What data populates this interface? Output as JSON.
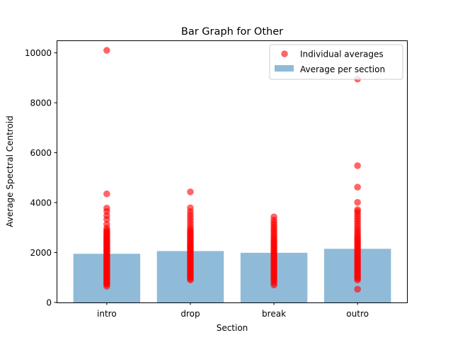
{
  "chart_data": {
    "type": "bar",
    "title": "Bar Graph for Other",
    "xlabel": "Section",
    "ylabel": "Average Spectral Centroid",
    "categories": [
      "intro",
      "drop",
      "break",
      "outro"
    ],
    "ylim": [
      0,
      10500
    ],
    "yticks": [
      0,
      2000,
      4000,
      6000,
      8000,
      10000
    ],
    "ytick_labels": [
      "0",
      "2000",
      "4000",
      "6000",
      "8000",
      "10000"
    ],
    "grid": false,
    "legend_position": "top-right",
    "series": [
      {
        "name": "Average per section",
        "kind": "bar",
        "color": "#1f77b4",
        "opacity": 0.5,
        "values": [
          1950,
          2060,
          1990,
          2150
        ]
      },
      {
        "name": "Individual averages",
        "kind": "scatter",
        "color": "#ff0000",
        "opacity": 0.6,
        "points": {
          "intro": [
            10100,
            4350,
            3780,
            3650,
            3480,
            3330,
            3130,
            2980,
            2900,
            2850,
            2800,
            2760,
            2700,
            2650,
            2600,
            2560,
            2520,
            2480,
            2440,
            2400,
            2360,
            2320,
            2280,
            2240,
            2200,
            2160,
            2120,
            2080,
            2040,
            2000,
            1960,
            1920,
            1880,
            1840,
            1800,
            1760,
            1720,
            1680,
            1640,
            1600,
            1560,
            1520,
            1480,
            1440,
            1400,
            1360,
            1320,
            1280,
            1240,
            1200,
            1160,
            1120,
            1080,
            1040,
            1000,
            960,
            920,
            880,
            840,
            800,
            760,
            720,
            650
          ],
          "drop": [
            4430,
            3790,
            3640,
            3520,
            3400,
            3280,
            3160,
            3040,
            2950,
            2880,
            2820,
            2760,
            2700,
            2640,
            2580,
            2520,
            2460,
            2400,
            2350,
            2300,
            2250,
            2200,
            2150,
            2100,
            2050,
            2000,
            1950,
            1900,
            1850,
            1800,
            1750,
            1700,
            1650,
            1600,
            1550,
            1500,
            1450,
            1400,
            1350,
            1300,
            1250,
            1200,
            1150,
            1100,
            1050,
            1000,
            950,
            900
          ],
          "break": [
            3430,
            3300,
            3200,
            3110,
            3020,
            2940,
            2860,
            2780,
            2700,
            2620,
            2550,
            2480,
            2420,
            2360,
            2300,
            2240,
            2180,
            2120,
            2060,
            2000,
            1940,
            1880,
            1820,
            1760,
            1700,
            1640,
            1580,
            1520,
            1460,
            1400,
            1340,
            1280,
            1220,
            1160,
            1100,
            1040,
            980,
            920,
            860,
            780,
            700
          ],
          "outro": [
            8950,
            5480,
            4620,
            4010,
            3720,
            3650,
            3560,
            3460,
            3360,
            3260,
            3160,
            3060,
            2960,
            2880,
            2800,
            2720,
            2650,
            2580,
            2520,
            2460,
            2400,
            2340,
            2280,
            2220,
            2160,
            2100,
            2040,
            1980,
            1920,
            1860,
            1800,
            1740,
            1680,
            1620,
            1560,
            1500,
            1440,
            1380,
            1320,
            1260,
            1200,
            1140,
            1080,
            1020,
            960,
            900,
            530
          ]
        }
      }
    ]
  }
}
